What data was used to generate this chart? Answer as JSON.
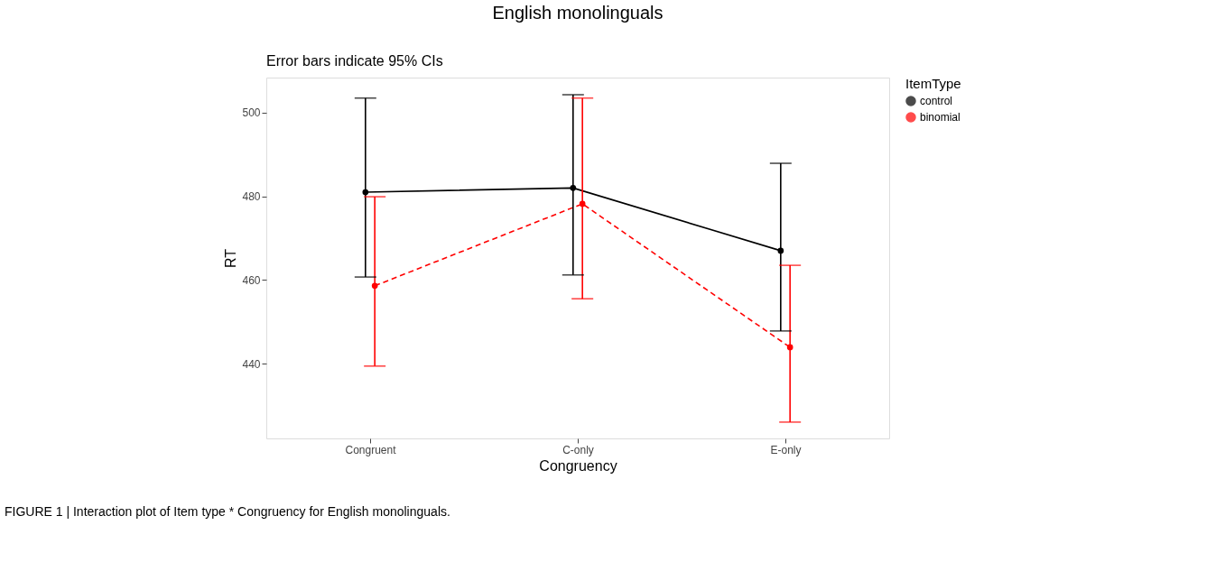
{
  "chart_data": {
    "type": "line",
    "title": "English monolinguals",
    "subtitle": "Error bars indicate 95% CIs",
    "xlabel": "Congruency",
    "ylabel": "RT",
    "legend_title": "ItemType",
    "categories": [
      "Congruent",
      "C-only",
      "E-only"
    ],
    "series": [
      {
        "name": "control",
        "color": "#000000",
        "line_style": "solid",
        "values": [
          481,
          482,
          467
        ],
        "errors": [
          [
            460.7,
            503.5
          ],
          [
            461.2,
            504.3
          ],
          [
            447.8,
            487.9
          ]
        ]
      },
      {
        "name": "binomial",
        "color": "#ff0000",
        "line_style": "dashed",
        "values": [
          458.6,
          478.2,
          443.9
        ],
        "errors": [
          [
            439.4,
            479.9
          ],
          [
            455.5,
            503.5
          ],
          [
            426.0,
            463.5
          ]
        ]
      }
    ],
    "ylim": [
      422.1,
      508.4
    ],
    "yticks": [
      440,
      460,
      480,
      500
    ],
    "grid": false,
    "legend": "right",
    "marker": "circle",
    "annotations": [
      "FIGURE 1 | Interaction plot of Item type * Congruency for English monolinguals."
    ]
  }
}
